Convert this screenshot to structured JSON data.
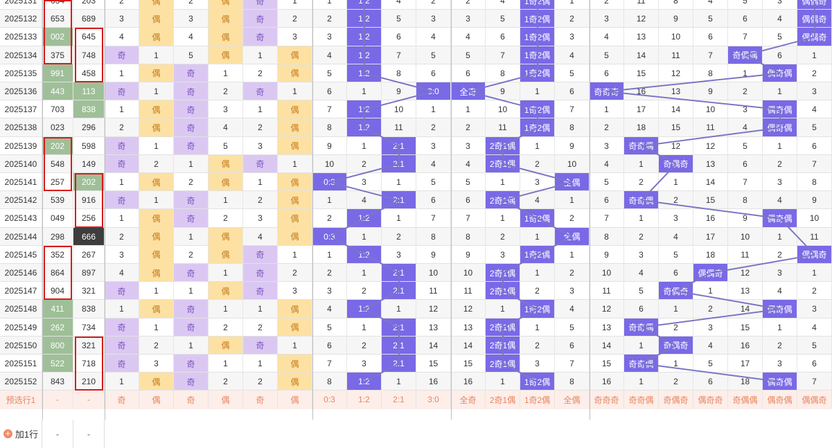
{
  "periods": [
    "2025131",
    "2025132",
    "2025133",
    "2025134",
    "2025135",
    "2025136",
    "2025137",
    "2025138",
    "2025139",
    "2025140",
    "2025141",
    "2025142",
    "2025143",
    "2025144",
    "2025145",
    "2025146",
    "2025147",
    "2025148",
    "2025149",
    "2025150",
    "2025151",
    "2025152"
  ],
  "num1": [
    "634",
    "653",
    "002",
    "375",
    "991",
    "443",
    "703",
    "023",
    "202",
    "548",
    "257",
    "539",
    "049",
    "298",
    "352",
    "864",
    "904",
    "411",
    "262",
    "800",
    "522",
    "843"
  ],
  "num2": [
    "203",
    "689",
    "645",
    "748",
    "458",
    "113",
    "838",
    "296",
    "598",
    "149",
    "202",
    "916",
    "256",
    "666",
    "267",
    "897",
    "321",
    "838",
    "734",
    "321",
    "718",
    "210"
  ],
  "rows": [
    [
      "2",
      "偶",
      "2",
      "偶",
      "奇",
      "1",
      "1",
      "1:2",
      "4",
      "2",
      "2",
      "4",
      "1奇2偶",
      "1",
      "2",
      "11",
      "8",
      "4",
      "5",
      "3",
      "偶偶奇"
    ],
    [
      "3",
      "偶",
      "3",
      "偶",
      "奇",
      "2",
      "2",
      "1:2",
      "5",
      "3",
      "3",
      "5",
      "1奇2偶",
      "2",
      "3",
      "12",
      "9",
      "5",
      "6",
      "4",
      "偶偶奇"
    ],
    [
      "4",
      "偶",
      "4",
      "偶",
      "奇",
      "3",
      "3",
      "1:2",
      "6",
      "4",
      "4",
      "6",
      "1奇2偶",
      "3",
      "4",
      "13",
      "10",
      "6",
      "7",
      "5",
      "偶偶奇"
    ],
    [
      "奇",
      "1",
      "5",
      "偶",
      "1",
      "偶",
      "4",
      "1:2",
      "7",
      "5",
      "5",
      "7",
      "1奇2偶",
      "4",
      "5",
      "14",
      "11",
      "7",
      "奇偶偶",
      "6",
      "1"
    ],
    [
      "1",
      "偶",
      "奇",
      "1",
      "2",
      "偶",
      "5",
      "1:2",
      "8",
      "6",
      "6",
      "8",
      "1奇2偶",
      "5",
      "6",
      "15",
      "12",
      "8",
      "1",
      "偶奇偶",
      "2"
    ],
    [
      "奇",
      "1",
      "奇",
      "2",
      "奇",
      "1",
      "6",
      "1",
      "9",
      "3:0",
      "全奇",
      "9",
      "1",
      "6",
      "奇奇奇",
      "16",
      "13",
      "9",
      "2",
      "1",
      "3"
    ],
    [
      "1",
      "偶",
      "奇",
      "3",
      "1",
      "偶",
      "7",
      "1:2",
      "10",
      "1",
      "1",
      "10",
      "1奇2偶",
      "7",
      "1",
      "17",
      "14",
      "10",
      "3",
      "偶奇偶",
      "4"
    ],
    [
      "2",
      "偶",
      "奇",
      "4",
      "2",
      "偶",
      "8",
      "1:2",
      "11",
      "2",
      "2",
      "11",
      "1奇2偶",
      "8",
      "2",
      "18",
      "15",
      "11",
      "4",
      "偶奇偶",
      "5"
    ],
    [
      "奇",
      "1",
      "奇",
      "5",
      "3",
      "偶",
      "9",
      "1",
      "2:1",
      "3",
      "3",
      "2奇1偶",
      "1",
      "9",
      "3",
      "奇奇偶",
      "12",
      "12",
      "5",
      "1",
      "6"
    ],
    [
      "奇",
      "2",
      "1",
      "偶",
      "奇",
      "1",
      "10",
      "2",
      "2:1",
      "4",
      "4",
      "2奇1偶",
      "2",
      "10",
      "4",
      "1",
      "奇偶奇",
      "13",
      "6",
      "2",
      "7"
    ],
    [
      "1",
      "偶",
      "2",
      "偶",
      "1",
      "偶",
      "0:3",
      "3",
      "1",
      "5",
      "5",
      "1",
      "3",
      "全偶",
      "5",
      "2",
      "1",
      "14",
      "7",
      "3",
      "8"
    ],
    [
      "奇",
      "1",
      "奇",
      "1",
      "2",
      "偶",
      "1",
      "4",
      "2:1",
      "6",
      "6",
      "2奇1偶",
      "4",
      "1",
      "6",
      "奇奇偶",
      "2",
      "15",
      "8",
      "4",
      "9"
    ],
    [
      "1",
      "偶",
      "奇",
      "2",
      "3",
      "偶",
      "2",
      "1:2",
      "1",
      "7",
      "7",
      "1",
      "1奇2偶",
      "2",
      "7",
      "1",
      "3",
      "16",
      "9",
      "偶奇偶",
      "10"
    ],
    [
      "2",
      "偶",
      "1",
      "偶",
      "4",
      "偶",
      "0:3",
      "1",
      "2",
      "8",
      "8",
      "2",
      "1",
      "全偶",
      "8",
      "2",
      "4",
      "17",
      "10",
      "1",
      "11"
    ],
    [
      "3",
      "偶",
      "2",
      "偶",
      "奇",
      "1",
      "1",
      "1:2",
      "3",
      "9",
      "9",
      "3",
      "1奇2偶",
      "1",
      "9",
      "3",
      "5",
      "18",
      "11",
      "2",
      "偶偶奇"
    ],
    [
      "4",
      "偶",
      "奇",
      "1",
      "奇",
      "2",
      "2",
      "1",
      "2:1",
      "10",
      "10",
      "2奇1偶",
      "1",
      "2",
      "10",
      "4",
      "6",
      "偶偶奇",
      "12",
      "3",
      "1"
    ],
    [
      "奇",
      "1",
      "1",
      "偶",
      "奇",
      "3",
      "3",
      "2",
      "2:1",
      "11",
      "11",
      "2奇1偶",
      "2",
      "3",
      "11",
      "5",
      "奇偶奇",
      "1",
      "13",
      "4",
      "2"
    ],
    [
      "1",
      "偶",
      "奇",
      "1",
      "1",
      "偶",
      "4",
      "1:2",
      "1",
      "12",
      "12",
      "1",
      "1奇2偶",
      "4",
      "12",
      "6",
      "1",
      "2",
      "14",
      "偶奇偶",
      "3"
    ],
    [
      "奇",
      "1",
      "奇",
      "2",
      "2",
      "偶",
      "5",
      "1",
      "2:1",
      "13",
      "13",
      "2奇1偶",
      "1",
      "5",
      "13",
      "奇奇偶",
      "2",
      "3",
      "15",
      "1",
      "4"
    ],
    [
      "奇",
      "2",
      "1",
      "偶",
      "奇",
      "1",
      "6",
      "2",
      "2:1",
      "14",
      "14",
      "2奇1偶",
      "2",
      "6",
      "14",
      "1",
      "奇偶奇",
      "4",
      "16",
      "2",
      "5"
    ],
    [
      "奇",
      "3",
      "奇",
      "1",
      "1",
      "偶",
      "7",
      "3",
      "2:1",
      "15",
      "15",
      "2奇1偶",
      "3",
      "7",
      "15",
      "奇奇偶",
      "1",
      "5",
      "17",
      "3",
      "6"
    ],
    [
      "1",
      "偶",
      "奇",
      "2",
      "2",
      "偶",
      "8",
      "1:2",
      "1",
      "16",
      "16",
      "1",
      "1奇2偶",
      "8",
      "16",
      "1",
      "2",
      "6",
      "18",
      "偶奇偶",
      "7"
    ]
  ],
  "preselect_label": "预选行1",
  "preselect": [
    "-",
    "-",
    "奇",
    "偶",
    "奇",
    "偶",
    "奇",
    "偶",
    "0:3",
    "1:2",
    "2:1",
    "3:0",
    "全奇",
    "2奇1偶",
    "1奇2偶",
    "全偶",
    "奇奇奇",
    "奇奇偶",
    "奇偶奇",
    "偶奇奇",
    "奇偶偶",
    "偶奇偶",
    "偶偶奇"
  ],
  "add_row_label": "加1行",
  "add_row_dashes": [
    "-",
    "-"
  ],
  "colors": {
    "green": "#9fbf98",
    "dark": "#3d3d3d",
    "yellow": "#fde1a3",
    "purple": "#dbc8f2",
    "blue": "#7a69e6",
    "red": "#d71a1a",
    "preselect_bg": "#fdeee9",
    "preselect_text": "#e8855f",
    "line": "#7a76c4"
  },
  "highlights_green": {
    "num1": [
      2,
      4,
      5,
      8,
      17,
      18,
      19,
      20
    ],
    "num2": [
      5,
      6,
      10
    ]
  },
  "highlights_dark": {
    "num2": [
      13
    ]
  },
  "red_boxes": {
    "num1": [
      [
        0,
        3
      ],
      [
        8,
        10
      ],
      [
        14,
        16
      ]
    ],
    "num2": [
      [
        2,
        4
      ],
      [
        10,
        12
      ],
      [
        19,
        21
      ]
    ]
  }
}
